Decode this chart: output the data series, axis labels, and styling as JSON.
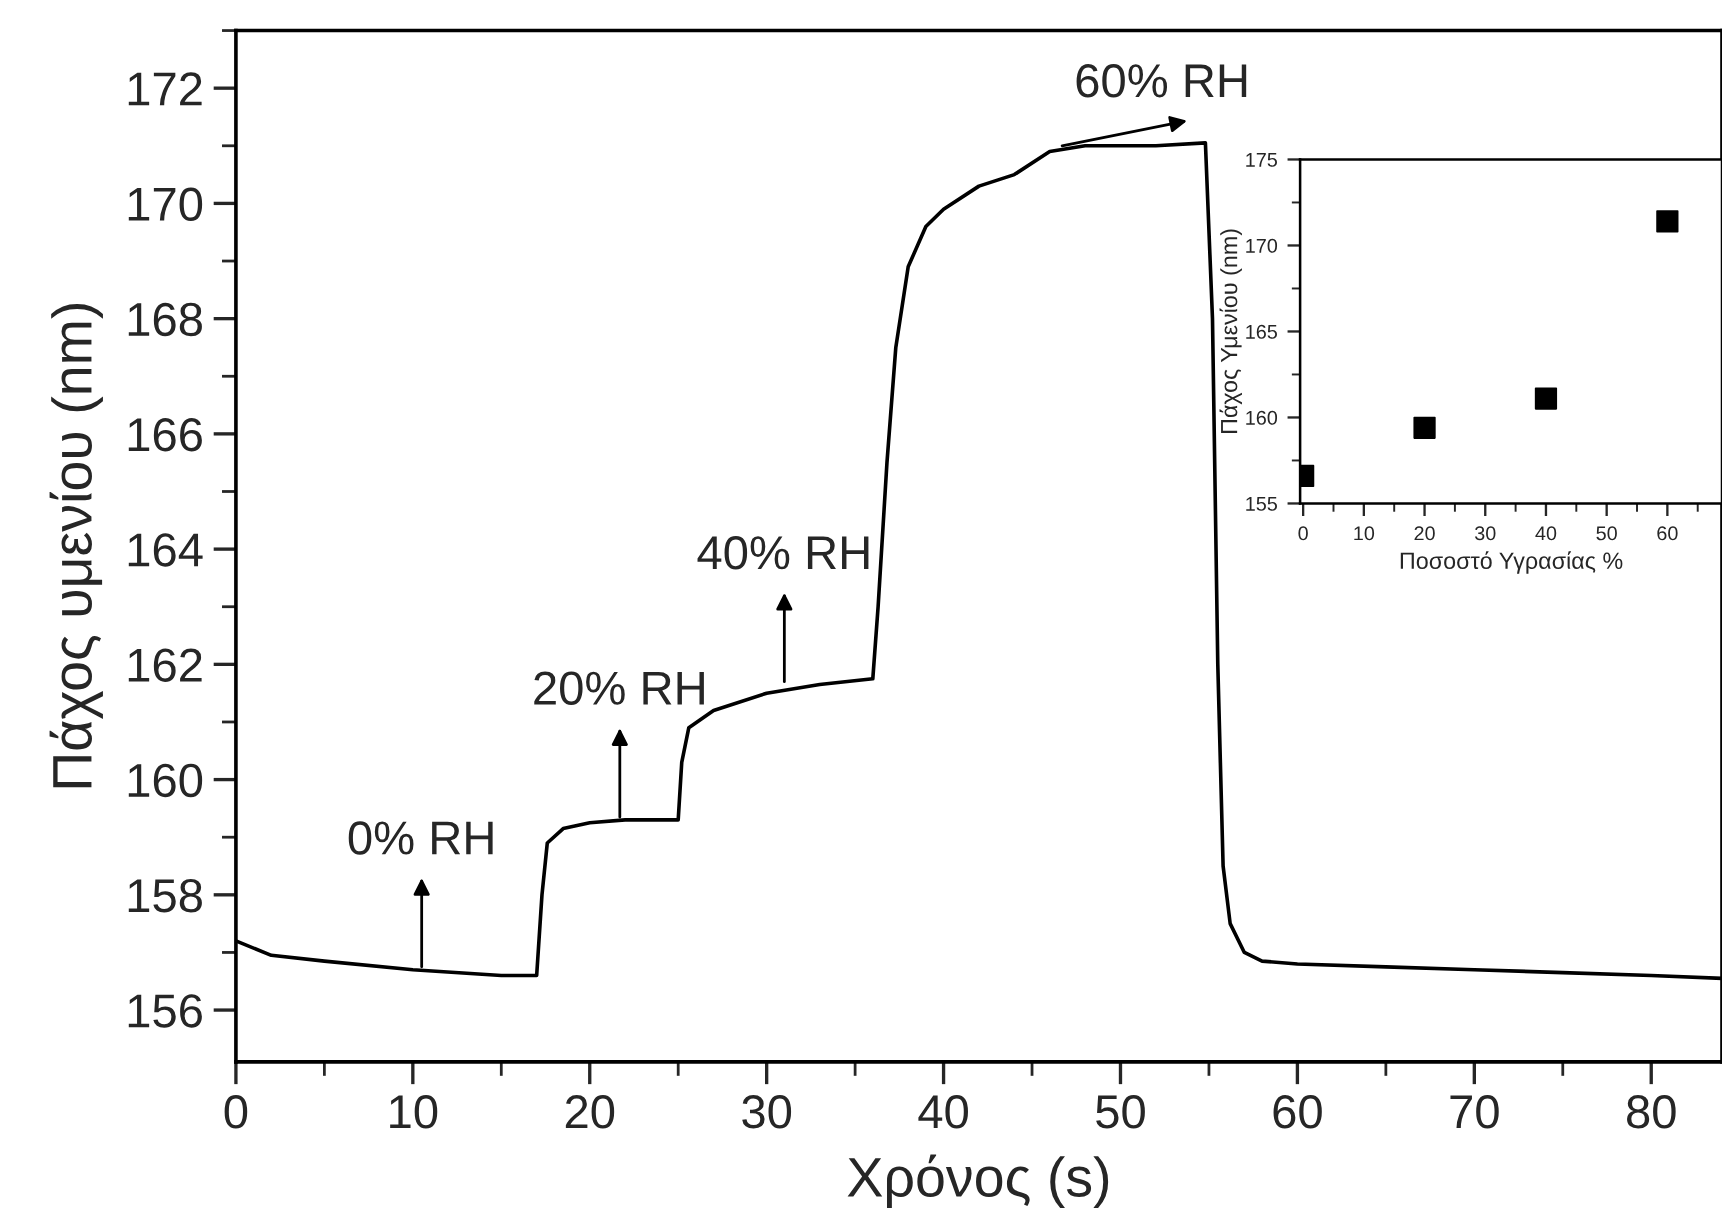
{
  "chart_data": [
    {
      "type": "line",
      "xlabel": "Χρόνος (s)",
      "ylabel": "Πάχος υμενίου (nm)",
      "xlim": [
        0,
        84
      ],
      "ylim": [
        155.1,
        173
      ],
      "xticks": [
        0,
        10,
        20,
        30,
        40,
        50,
        60,
        70,
        80
      ],
      "yticks": [
        156,
        158,
        160,
        162,
        164,
        166,
        168,
        170,
        172
      ],
      "grid": false,
      "legend": false,
      "marker": "none",
      "line_style": "solid",
      "series": [
        {
          "color": "#000000",
          "x": [
            0,
            2,
            5,
            10,
            15,
            17,
            17.3,
            17.6,
            18.5,
            20,
            22,
            25,
            25.2,
            25.6,
            27,
            30,
            33,
            36,
            36.3,
            36.8,
            37.3,
            38,
            39,
            40,
            42,
            44,
            46,
            48,
            50,
            52,
            54.8,
            55.2,
            55.5,
            55.8,
            56.2,
            57,
            58,
            60,
            65,
            70,
            75,
            80,
            84
          ],
          "values": [
            157.2,
            156.95,
            156.85,
            156.7,
            156.6,
            156.6,
            158.0,
            158.9,
            159.15,
            159.25,
            159.3,
            159.3,
            160.3,
            160.9,
            161.2,
            161.5,
            161.65,
            161.75,
            163,
            165.5,
            167.5,
            168.9,
            169.6,
            169.9,
            170.3,
            170.5,
            170.9,
            171.0,
            171.0,
            171.0,
            171.05,
            168,
            162,
            158.5,
            157.5,
            157.0,
            156.85,
            156.8,
            156.75,
            156.7,
            156.65,
            156.6,
            156.55
          ]
        }
      ],
      "annotations": [
        {
          "text": "0% RH",
          "x": 10.5,
          "y": 156.75
        },
        {
          "text": "20% RH",
          "x": 21.7,
          "y": 159.35
        },
        {
          "text": "40% RH",
          "x": 31,
          "y": 161.7
        },
        {
          "text": "60% RH",
          "x": 46.7,
          "y": 171.0
        }
      ]
    },
    {
      "type": "scatter",
      "xlabel": "Ποσοστό Υγρασίας %",
      "ylabel": "Πάχος Υμενίου (nm)",
      "xlim": [
        -0.5,
        69
      ],
      "ylim": [
        155,
        175
      ],
      "xticks": [
        0,
        10,
        20,
        30,
        40,
        50,
        60
      ],
      "yticks": [
        155,
        160,
        165,
        170,
        175
      ],
      "grid": false,
      "legend": false,
      "marker": "square",
      "series": [
        {
          "color": "#000000",
          "x": [
            0,
            20,
            40,
            60
          ],
          "values": [
            156.6,
            159.4,
            161.1,
            171.4
          ]
        }
      ]
    }
  ]
}
